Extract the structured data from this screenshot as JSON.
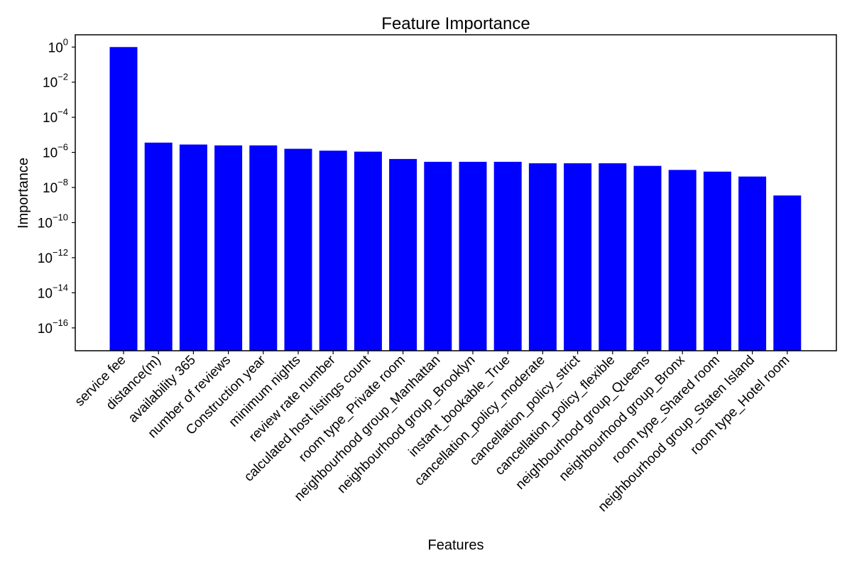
{
  "chart_data": {
    "type": "bar",
    "title": "Feature Importance",
    "xlabel": "Features",
    "ylabel": "Importance",
    "yscale": "log",
    "ylim": [
      5e-18,
      5
    ],
    "ytick_base": "10",
    "yticks": [
      {
        "value": 1e-16,
        "exp": "−16"
      },
      {
        "value": 1e-14,
        "exp": "−14"
      },
      {
        "value": 1e-12,
        "exp": "−12"
      },
      {
        "value": 1e-10,
        "exp": "−10"
      },
      {
        "value": 1e-08,
        "exp": "−8"
      },
      {
        "value": 1e-06,
        "exp": "−6"
      },
      {
        "value": 0.0001,
        "exp": "−4"
      },
      {
        "value": 0.01,
        "exp": "−2"
      },
      {
        "value": 1,
        "exp": "0"
      }
    ],
    "color": "#0000ff",
    "grid": false,
    "categories": [
      "service fee",
      "distance(m)",
      "availability 365",
      "number of reviews",
      "Construction year",
      "minimum nights",
      "review rate number",
      "calculated host listings count",
      "room type_Private room",
      "neighbourhood group_Manhattan",
      "neighbourhood group_Brooklyn",
      "instant_bookable_True",
      "cancellation_policy_moderate",
      "cancellation_policy_strict",
      "cancellation_policy_flexible",
      "neighbourhood group_Queens",
      "neighbourhood group_Bronx",
      "room type_Shared room",
      "neighbourhood group_Staten Island",
      "room type_Hotel room"
    ],
    "values": [
      0.99998,
      3.6e-06,
      2.8e-06,
      2.5e-06,
      2.5e-06,
      1.6e-06,
      1.25e-06,
      1.1e-06,
      4.2e-07,
      2.9e-07,
      2.9e-07,
      2.9e-07,
      2.4e-07,
      2.4e-07,
      2.4e-07,
      1.7e-07,
      1e-07,
      8e-08,
      4.2e-08,
      3.5e-09
    ]
  }
}
